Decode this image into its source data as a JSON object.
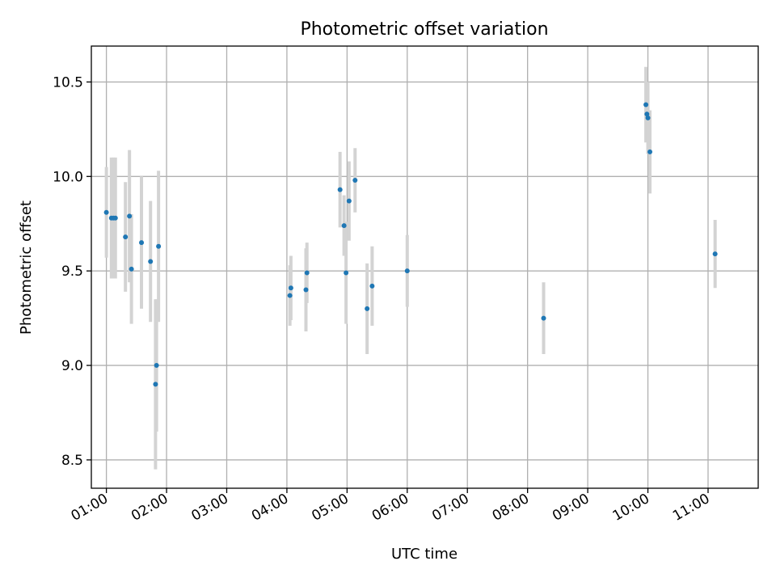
{
  "chart_data": {
    "type": "scatter",
    "title": "Photometric offset variation",
    "xlabel": "UTC time",
    "ylabel": "Photometric offset",
    "xlim": [
      "00:45",
      "11:50"
    ],
    "ylim": [
      8.35,
      10.69
    ],
    "x_ticks": [
      "01:00",
      "02:00",
      "03:00",
      "04:00",
      "05:00",
      "06:00",
      "07:00",
      "08:00",
      "09:00",
      "10:00",
      "11:00"
    ],
    "y_ticks": [
      8.5,
      9.0,
      9.5,
      10.0,
      10.5
    ],
    "grid": true,
    "colors": {
      "points": "#1f77b4",
      "error_bars": "#d3d3d3",
      "grid": "#b0b0b0"
    },
    "points": [
      {
        "x": "01:00",
        "y": 9.81,
        "yerr": 0.24
      },
      {
        "x": "01:05",
        "y": 9.78,
        "yerr": 0.32
      },
      {
        "x": "01:07",
        "y": 9.78,
        "yerr": 0.32
      },
      {
        "x": "01:09",
        "y": 9.78,
        "yerr": 0.32
      },
      {
        "x": "01:19",
        "y": 9.68,
        "yerr": 0.29
      },
      {
        "x": "01:23",
        "y": 9.79,
        "yerr": 0.35
      },
      {
        "x": "01:25",
        "y": 9.51,
        "yerr": 0.29
      },
      {
        "x": "01:35",
        "y": 9.65,
        "yerr": 0.35
      },
      {
        "x": "01:44",
        "y": 9.55,
        "yerr": 0.32
      },
      {
        "x": "01:49",
        "y": 8.9,
        "yerr": 0.45
      },
      {
        "x": "01:50",
        "y": 9.0,
        "yerr": 0.35
      },
      {
        "x": "01:52",
        "y": 9.63,
        "yerr": 0.4
      },
      {
        "x": "04:03",
        "y": 9.37,
        "yerr": 0.16
      },
      {
        "x": "04:04",
        "y": 9.41,
        "yerr": 0.17
      },
      {
        "x": "04:19",
        "y": 9.4,
        "yerr": 0.22
      },
      {
        "x": "04:20",
        "y": 9.49,
        "yerr": 0.16
      },
      {
        "x": "04:53",
        "y": 9.93,
        "yerr": 0.2
      },
      {
        "x": "04:57",
        "y": 9.74,
        "yerr": 0.16
      },
      {
        "x": "04:59",
        "y": 9.49,
        "yerr": 0.27
      },
      {
        "x": "05:02",
        "y": 9.87,
        "yerr": 0.21
      },
      {
        "x": "05:08",
        "y": 9.98,
        "yerr": 0.17
      },
      {
        "x": "05:20",
        "y": 9.3,
        "yerr": 0.24
      },
      {
        "x": "05:25",
        "y": 9.42,
        "yerr": 0.21
      },
      {
        "x": "06:00",
        "y": 9.5,
        "yerr": 0.19
      },
      {
        "x": "08:16",
        "y": 9.25,
        "yerr": 0.19
      },
      {
        "x": "09:58",
        "y": 10.38,
        "yerr": 0.2
      },
      {
        "x": "09:59",
        "y": 10.33,
        "yerr": 0.14
      },
      {
        "x": "10:00",
        "y": 10.31,
        "yerr": 0.19
      },
      {
        "x": "10:02",
        "y": 10.13,
        "yerr": 0.22
      },
      {
        "x": "11:07",
        "y": 9.59,
        "yerr": 0.18
      }
    ]
  }
}
